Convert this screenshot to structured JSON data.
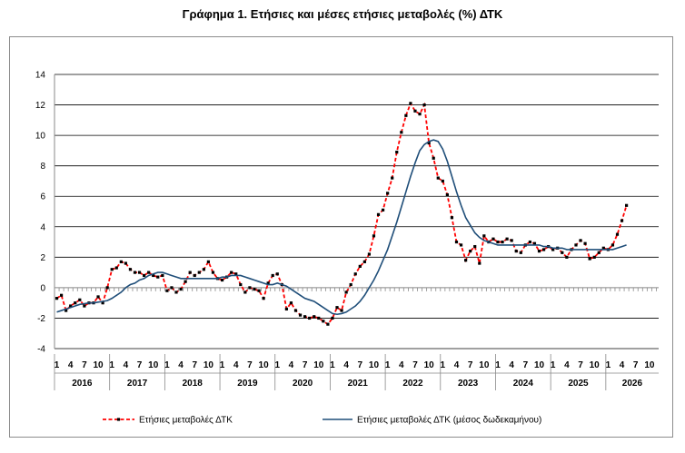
{
  "chart_data": {
    "type": "line",
    "title": "Γράφημα 1. Ετήσιες και μέσες ετήσιες μεταβολές (%) ΔΤΚ",
    "xlabel": "",
    "ylabel": "",
    "ylim": [
      -4,
      14
    ],
    "yticks": [
      -4,
      -2,
      0,
      2,
      4,
      6,
      8,
      10,
      12,
      14
    ],
    "x_start": "2016-01",
    "month_ticks": [
      "1",
      "4",
      "7",
      "10"
    ],
    "years": [
      "2016",
      "2017",
      "2018",
      "2019",
      "2020",
      "2021",
      "2022",
      "2023",
      "2024",
      "2025",
      "2026"
    ],
    "grid": true,
    "legend_position": "bottom",
    "series": [
      {
        "name": "Ετήσιες μεταβολές ΔΤΚ",
        "color": "#ff0000",
        "marker_color": "#000000",
        "style": "dashed",
        "values": [
          -0.7,
          -0.5,
          -1.5,
          -1.2,
          -1.0,
          -0.8,
          -1.2,
          -1.0,
          -1.0,
          -0.6,
          -1.0,
          0.0,
          1.2,
          1.3,
          1.7,
          1.6,
          1.2,
          1.0,
          1.0,
          0.8,
          1.0,
          0.8,
          0.7,
          0.8,
          -0.2,
          0.0,
          -0.3,
          -0.1,
          0.4,
          1.0,
          0.8,
          1.0,
          1.2,
          1.7,
          1.0,
          0.6,
          0.5,
          0.7,
          1.0,
          0.9,
          0.2,
          -0.3,
          0.0,
          -0.1,
          -0.2,
          -0.7,
          0.3,
          0.8,
          0.9,
          0.2,
          -1.4,
          -1.0,
          -1.5,
          -1.8,
          -1.9,
          -2.0,
          -1.9,
          -2.0,
          -2.2,
          -2.4,
          -2.0,
          -1.3,
          -1.5,
          -0.3,
          0.2,
          0.9,
          1.4,
          1.7,
          2.2,
          3.4,
          4.8,
          5.1,
          6.2,
          7.2,
          8.9,
          10.2,
          11.3,
          12.1,
          11.6,
          11.4,
          12.0,
          9.5,
          8.5,
          7.2,
          7.0,
          6.1,
          4.6,
          3.0,
          2.8,
          1.8,
          2.4,
          2.7,
          1.6,
          3.4,
          3.0,
          3.2,
          3.0,
          3.0,
          3.2,
          3.1,
          2.4,
          2.3,
          2.8,
          3.0,
          2.9,
          2.4,
          2.5,
          2.7,
          2.5,
          2.6,
          2.3,
          2.0,
          2.5,
          2.8,
          3.1,
          2.9,
          1.9,
          2.0,
          2.3,
          2.6,
          2.5,
          2.8,
          3.5,
          4.4,
          5.4
        ]
      },
      {
        "name": "Ετήσιες μεταβολές ΔΤΚ (μέσος δωδεκαμήνου)",
        "color": "#1f4e79",
        "style": "solid",
        "values": [
          -1.6,
          -1.5,
          -1.4,
          -1.3,
          -1.2,
          -1.1,
          -1.05,
          -1.0,
          -1.0,
          -0.95,
          -0.9,
          -0.85,
          -0.7,
          -0.5,
          -0.3,
          0.0,
          0.2,
          0.3,
          0.5,
          0.6,
          0.8,
          0.9,
          1.0,
          1.0,
          0.9,
          0.8,
          0.7,
          0.6,
          0.6,
          0.6,
          0.6,
          0.6,
          0.6,
          0.6,
          0.6,
          0.6,
          0.7,
          0.7,
          0.8,
          0.8,
          0.8,
          0.7,
          0.6,
          0.5,
          0.4,
          0.3,
          0.2,
          0.2,
          0.3,
          0.2,
          0.1,
          -0.1,
          -0.3,
          -0.5,
          -0.7,
          -0.8,
          -0.9,
          -1.1,
          -1.3,
          -1.5,
          -1.7,
          -1.75,
          -1.7,
          -1.6,
          -1.4,
          -1.2,
          -0.9,
          -0.5,
          0.0,
          0.5,
          1.1,
          1.8,
          2.5,
          3.4,
          4.3,
          5.3,
          6.3,
          7.3,
          8.2,
          9.0,
          9.4,
          9.6,
          9.7,
          9.6,
          9.1,
          8.3,
          7.3,
          6.3,
          5.4,
          4.6,
          4.1,
          3.6,
          3.3,
          3.1,
          3.0,
          2.9,
          2.8,
          2.8,
          2.8,
          2.8,
          2.8,
          2.8,
          2.8,
          2.8,
          2.8,
          2.8,
          2.7,
          2.7,
          2.6,
          2.6,
          2.6,
          2.5,
          2.5,
          2.5,
          2.5,
          2.5,
          2.5,
          2.5,
          2.5,
          2.5,
          2.5,
          2.5,
          2.6,
          2.7,
          2.8
        ]
      }
    ]
  }
}
